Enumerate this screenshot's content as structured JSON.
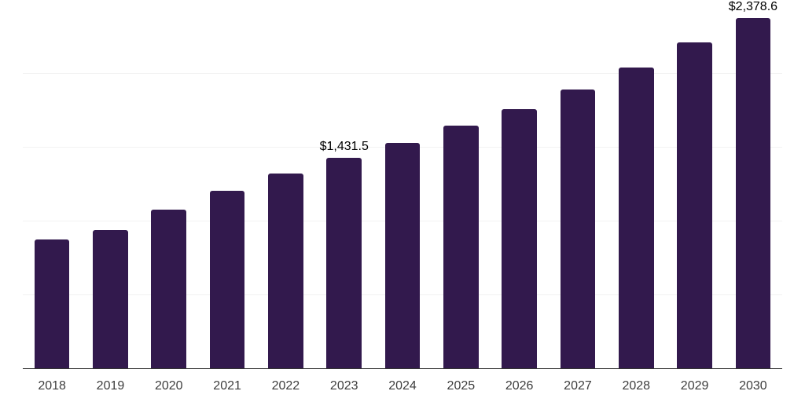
{
  "chart_data": {
    "type": "bar",
    "title": "",
    "xlabel": "",
    "ylabel": "",
    "categories": [
      "2018",
      "2019",
      "2020",
      "2021",
      "2022",
      "2023",
      "2024",
      "2025",
      "2026",
      "2027",
      "2028",
      "2029",
      "2030"
    ],
    "values": [
      878,
      940,
      1078,
      1209,
      1326,
      1431.5,
      1533,
      1649,
      1761,
      1894,
      2043,
      2211,
      2378.6
    ],
    "data_labels": [
      {
        "category": "2023",
        "text": "$1,431.5"
      },
      {
        "category": "2030",
        "text": "$2,378.6"
      }
    ],
    "ylim": [
      0,
      2500
    ],
    "gridline_step": 500,
    "grid": "horizontal",
    "legend": "none",
    "y_tick_labels_visible": false,
    "bar_color": "#32194d",
    "gridline_color": "#f2f2f2",
    "axis_color": "#333333",
    "tick_label_color": "#3d3d3d",
    "data_label_color": "#000000"
  }
}
